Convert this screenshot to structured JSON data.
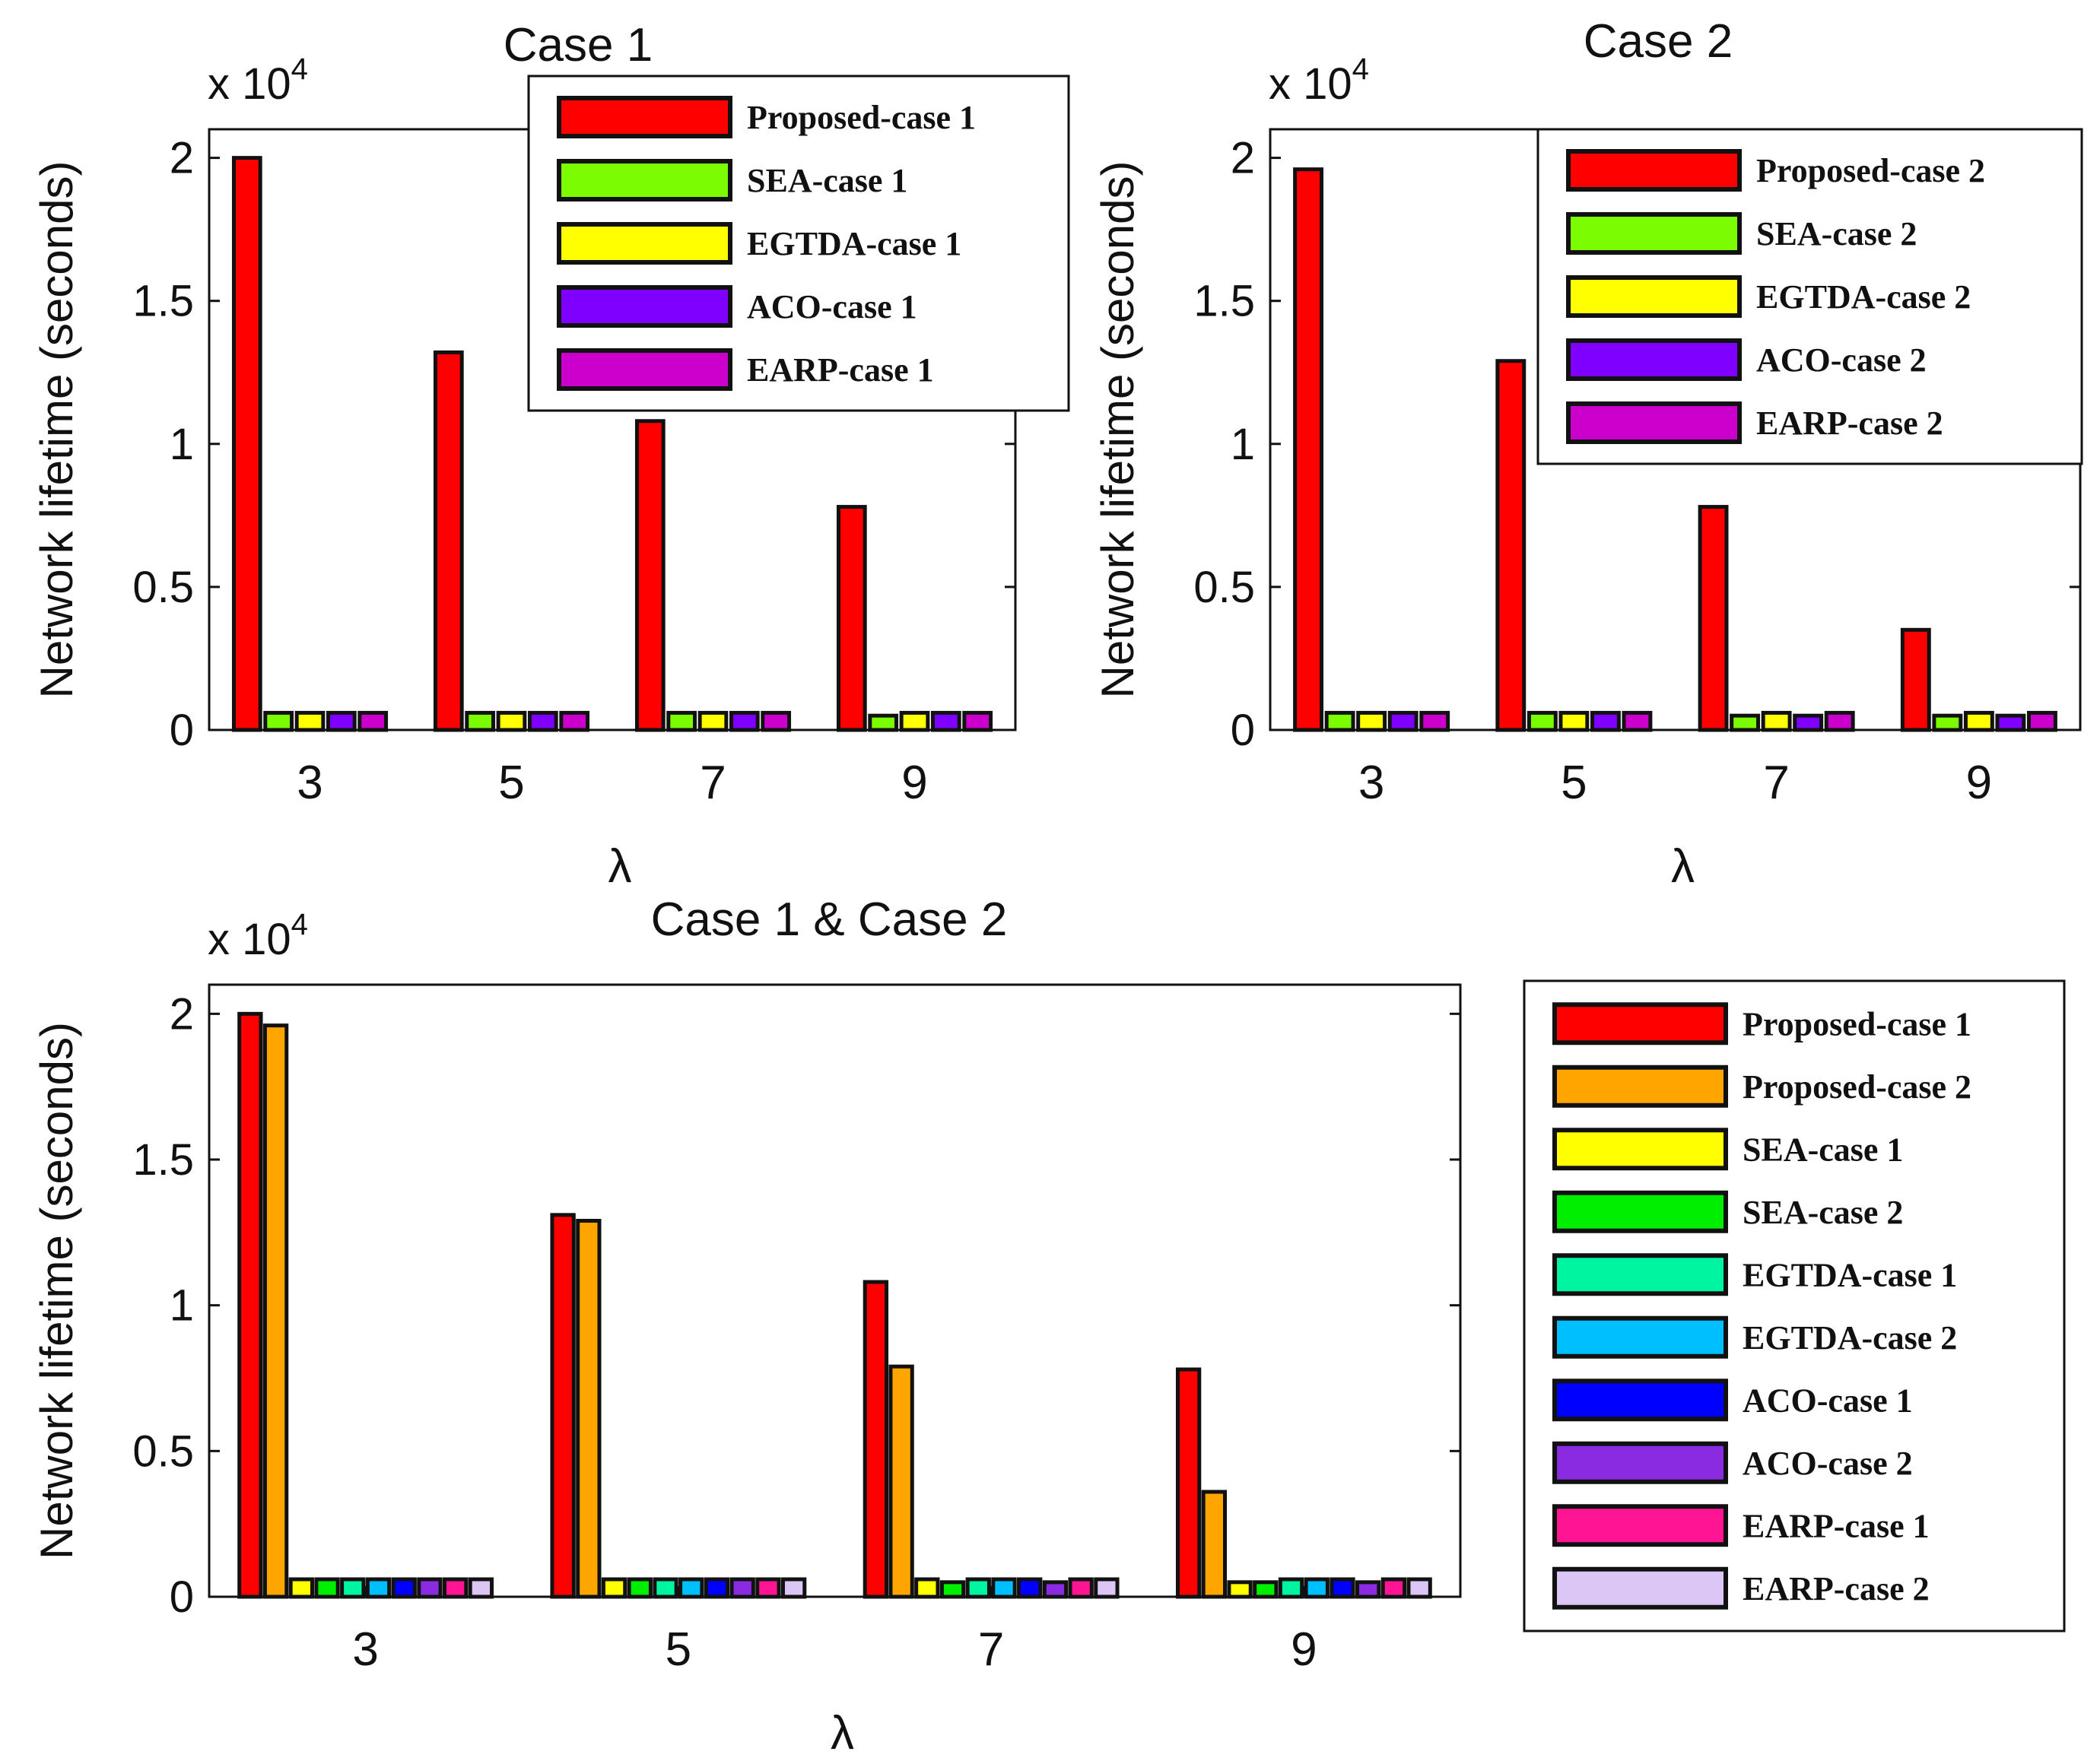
{
  "figure": {
    "background": "#ffffff"
  },
  "chart_data": [
    {
      "id": "case1",
      "type": "bar",
      "title": "Case 1",
      "xlabel": "λ",
      "ylabel": "Network lifetime (seconds)",
      "multiplier_label": "x 10",
      "multiplier_exponent": "4",
      "categories": [
        "3",
        "5",
        "7",
        "9"
      ],
      "ylim": [
        0,
        2.1
      ],
      "yticks": [
        0,
        0.5,
        1,
        1.5,
        2
      ],
      "ytick_labels": [
        "0",
        "0.5",
        "1",
        "1.5",
        "2"
      ],
      "series": [
        {
          "name": "Proposed-case 1",
          "color": "#ff0000",
          "values": [
            2.0,
            1.32,
            1.08,
            0.78
          ]
        },
        {
          "name": "SEA-case 1",
          "color": "#7cfc00",
          "values": [
            0.06,
            0.06,
            0.06,
            0.05
          ]
        },
        {
          "name": "EGTDA-case 1",
          "color": "#ffff00",
          "values": [
            0.06,
            0.06,
            0.06,
            0.06
          ]
        },
        {
          "name": "ACO-case 1",
          "color": "#7f00ff",
          "values": [
            0.06,
            0.06,
            0.06,
            0.06
          ]
        },
        {
          "name": "EARP-case 1",
          "color": "#cc00cc",
          "values": [
            0.06,
            0.06,
            0.06,
            0.06
          ]
        }
      ]
    },
    {
      "id": "case2",
      "type": "bar",
      "title": "Case 2",
      "xlabel": "λ",
      "ylabel": "Network lifetime (seconds)",
      "multiplier_label": "x 10",
      "multiplier_exponent": "4",
      "categories": [
        "3",
        "5",
        "7",
        "9"
      ],
      "ylim": [
        0,
        2.1
      ],
      "yticks": [
        0,
        0.5,
        1,
        1.5,
        2
      ],
      "ytick_labels": [
        "0",
        "0.5",
        "1",
        "1.5",
        "2"
      ],
      "series": [
        {
          "name": "Proposed-case 2",
          "color": "#ff0000",
          "values": [
            1.96,
            1.29,
            0.78,
            0.35
          ]
        },
        {
          "name": "SEA-case 2",
          "color": "#7cfc00",
          "values": [
            0.06,
            0.06,
            0.05,
            0.05
          ]
        },
        {
          "name": "EGTDA-case 2",
          "color": "#ffff00",
          "values": [
            0.06,
            0.06,
            0.06,
            0.06
          ]
        },
        {
          "name": "ACO-case 2",
          "color": "#7f00ff",
          "values": [
            0.06,
            0.06,
            0.05,
            0.05
          ]
        },
        {
          "name": "EARP-case 2",
          "color": "#cc00cc",
          "values": [
            0.06,
            0.06,
            0.06,
            0.06
          ]
        }
      ]
    },
    {
      "id": "combined",
      "type": "bar",
      "title": "Case 1 & Case 2",
      "xlabel": "λ",
      "ylabel": "Network lifetime (seconds)",
      "multiplier_label": "x 10",
      "multiplier_exponent": "4",
      "categories": [
        "3",
        "5",
        "7",
        "9"
      ],
      "ylim": [
        0,
        2.1
      ],
      "yticks": [
        0,
        0.5,
        1,
        1.5,
        2
      ],
      "ytick_labels": [
        "0",
        "0.5",
        "1",
        "1.5",
        "2"
      ],
      "series": [
        {
          "name": "Proposed-case 1",
          "color": "#ff0000",
          "values": [
            2.0,
            1.31,
            1.08,
            0.78
          ]
        },
        {
          "name": "Proposed-case 2",
          "color": "#ffa500",
          "values": [
            1.96,
            1.29,
            0.79,
            0.36
          ]
        },
        {
          "name": "SEA-case 1",
          "color": "#ffff00",
          "values": [
            0.06,
            0.06,
            0.06,
            0.05
          ]
        },
        {
          "name": "SEA-case 2",
          "color": "#00ee00",
          "values": [
            0.06,
            0.06,
            0.05,
            0.05
          ]
        },
        {
          "name": "EGTDA-case 1",
          "color": "#00f5a0",
          "values": [
            0.06,
            0.06,
            0.06,
            0.06
          ]
        },
        {
          "name": "EGTDA-case 2",
          "color": "#00bfff",
          "values": [
            0.06,
            0.06,
            0.06,
            0.06
          ]
        },
        {
          "name": "ACO-case 1",
          "color": "#0000ff",
          "values": [
            0.06,
            0.06,
            0.06,
            0.06
          ]
        },
        {
          "name": "ACO-case 2",
          "color": "#8a2be2",
          "values": [
            0.06,
            0.06,
            0.05,
            0.05
          ]
        },
        {
          "name": "EARP-case 1",
          "color": "#ff1493",
          "values": [
            0.06,
            0.06,
            0.06,
            0.06
          ]
        },
        {
          "name": "EARP-case 2",
          "color": "#dcc6f5",
          "values": [
            0.06,
            0.06,
            0.06,
            0.06
          ]
        }
      ]
    }
  ]
}
